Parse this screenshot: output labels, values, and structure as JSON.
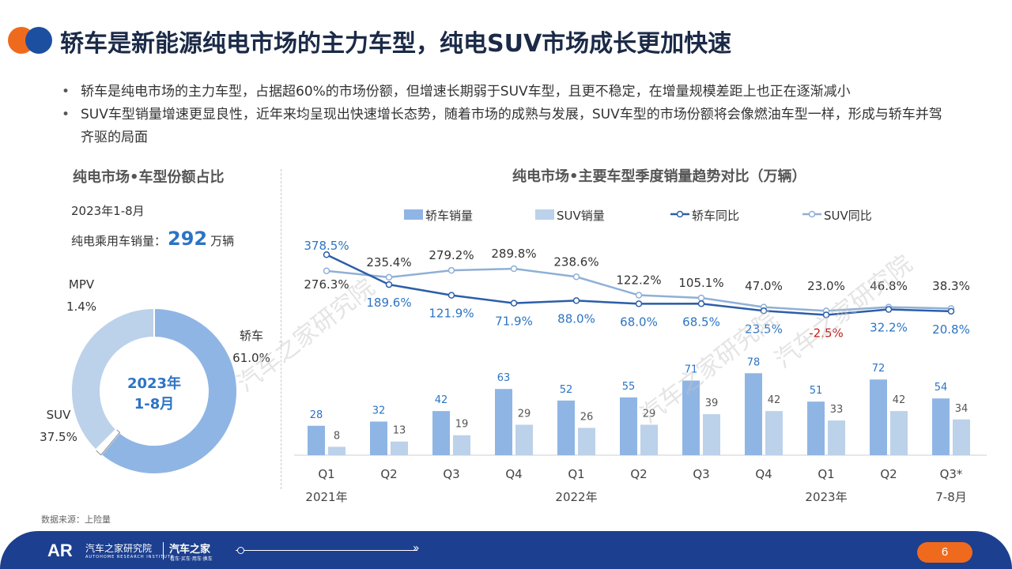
{
  "header": {
    "title": "轿车是新能源纯电市场的主力车型，纯电SUV市场成长更加快速"
  },
  "bullets": [
    "轿车是纯电市场的主力车型，占据超60%的市场份额，但增速长期弱于SUV车型，且更不稳定，在增量规模差距上也正在逐渐减小",
    "SUV车型销量增速更显良性，近年来均呈现出快速增长态势，随着市场的成熟与发展，SUV车型的市场份额将会像燃油车型一样，形成与轿车并驾齐驱的局面"
  ],
  "left_panel": {
    "title": "纯电市场•车型份额占比",
    "period": "2023年1-8月",
    "total_label": "纯电乘用车销量：",
    "total_value": "292",
    "total_unit": "万辆",
    "center_line1": "2023年",
    "center_line2": "1-8月"
  },
  "right_panel": {
    "title": "纯电市场•主要车型季度销量趋势对比（万辆）"
  },
  "source": "数据来源：上险量",
  "watermark": "汽车之家研究院",
  "footer": {
    "logo": "AR",
    "institute": "汽车之家研究院",
    "institute_en": "AUTOHOME RESEARCH INSTITUTE",
    "brand": "汽车之家",
    "tagline": "看车·买车·用车·换车",
    "page": "6"
  },
  "chart_data": [
    {
      "type": "pie",
      "variant": "donut",
      "title": "纯电市场•车型份额占比",
      "slices": [
        {
          "label": "轿车",
          "value": 61.0,
          "display": "61.0%",
          "color": "#8fb5e4"
        },
        {
          "label": "MPV",
          "value": 1.4,
          "display": "1.4%",
          "color": "#ffffff"
        },
        {
          "label": "SUV",
          "value": 37.5,
          "display": "37.5%",
          "color": "#bcd1ea"
        }
      ]
    },
    {
      "type": "bar",
      "title": "纯电市场•主要车型季度销量趋势对比（万辆）",
      "categories": [
        "Q1",
        "Q2",
        "Q3",
        "Q4",
        "Q1",
        "Q2",
        "Q3",
        "Q4",
        "Q1",
        "Q2",
        "Q3*"
      ],
      "category_groups": [
        {
          "label": "2021年",
          "index": 0
        },
        {
          "label": "2022年",
          "index": 4
        },
        {
          "label": "2023年",
          "index": 8
        },
        {
          "label": "7-8月",
          "index": 10
        }
      ],
      "legend_position": "top",
      "series": [
        {
          "name": "轿车销量",
          "kind": "bar",
          "color": "#8fb5e4",
          "label_color": "#2c74c4",
          "values": [
            28,
            32,
            42,
            63,
            52,
            55,
            71,
            78,
            51,
            72,
            54
          ]
        },
        {
          "name": "SUV销量",
          "kind": "bar",
          "color": "#bcd1ea",
          "label_color": "#555555",
          "values": [
            8,
            13,
            19,
            29,
            26,
            29,
            39,
            42,
            33,
            42,
            34
          ]
        },
        {
          "name": "轿车同比",
          "kind": "line",
          "unit": "%",
          "color": "#2c5ea8",
          "label_color": "#2c74c4",
          "negative_color": "#c0201a",
          "values": [
            378.5,
            189.6,
            121.9,
            71.9,
            88.0,
            68.0,
            68.5,
            23.5,
            -2.5,
            32.2,
            20.8
          ]
        },
        {
          "name": "SUV同比",
          "kind": "line",
          "unit": "%",
          "color": "#8fb0d6",
          "label_color": "#333333",
          "values": [
            276.3,
            235.4,
            279.2,
            289.8,
            238.6,
            122.2,
            105.1,
            47.0,
            23.0,
            46.8,
            38.3
          ]
        }
      ]
    }
  ]
}
